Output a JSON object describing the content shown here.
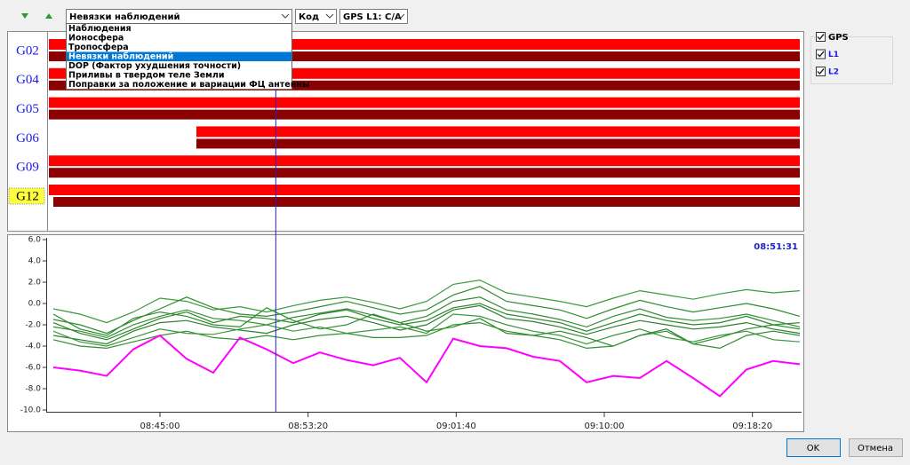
{
  "toolbar": {
    "options": [
      "Наблюдения",
      "Ионосфера",
      "Тропосфера",
      "Невязки наблюдений",
      "DOP (Фактор ухудшения точности)",
      "Приливы в твердом теле Земли",
      "Поправки за положение и вариации ФЦ антенны"
    ],
    "selected_index": 3,
    "code": "Код",
    "signal": "GPS L1: C/A"
  },
  "timeline": {
    "bar_colors": [
      "#ff0000",
      "#8b0000"
    ],
    "satellites": [
      {
        "name": "G02",
        "bars": [
          [
            "08:38:45",
            "09:21:00"
          ],
          [
            "08:38:45",
            "09:21:00"
          ]
        ]
      },
      {
        "name": "G04",
        "bars": [
          [
            "08:38:45",
            "09:21:00"
          ],
          [
            "08:38:45",
            "09:21:00"
          ]
        ]
      },
      {
        "name": "G05",
        "bars": [
          [
            "08:38:45",
            "09:21:00"
          ],
          [
            "08:38:45",
            "09:21:00"
          ]
        ]
      },
      {
        "name": "G06",
        "bars": [
          [
            "08:47:03",
            "09:21:00"
          ],
          [
            "08:47:03",
            "09:21:00"
          ]
        ]
      },
      {
        "name": "G09",
        "bars": [
          [
            "08:38:45",
            "09:21:00"
          ],
          [
            "08:38:45",
            "09:21:00"
          ]
        ]
      },
      {
        "name": "G12",
        "highlight": true,
        "bars": [
          [
            "08:38:45",
            "09:21:00"
          ],
          [
            "08:39:00",
            "09:21:00"
          ]
        ]
      }
    ]
  },
  "chart_data": {
    "type": "line",
    "cursor": "08:51:31",
    "cursor_color": "#2222cc",
    "xlim": [
      "08:38:45",
      "09:21:00"
    ],
    "xticks": [
      "08:45:00",
      "08:53:20",
      "09:01:40",
      "09:10:00",
      "09:18:20"
    ],
    "ylim": [
      -10,
      6
    ],
    "yticks": [
      {
        "value": 6,
        "label": "6.0"
      },
      {
        "value": 4,
        "label": "4.0"
      },
      {
        "value": 2,
        "label": "2.0"
      },
      {
        "value": 0,
        "label": "0.0"
      },
      {
        "value": -2,
        "label": "-2.0"
      },
      {
        "value": -4,
        "label": "-4.0"
      },
      {
        "value": -6,
        "label": "-6.0"
      },
      {
        "value": -8,
        "label": "-8.0"
      },
      {
        "value": -10,
        "label": "-10.0"
      }
    ],
    "x": [
      "08:39:00",
      "08:40:30",
      "08:42:00",
      "08:43:30",
      "08:45:00",
      "08:46:30",
      "08:48:00",
      "08:49:30",
      "08:51:00",
      "08:52:30",
      "08:54:00",
      "08:55:30",
      "08:57:00",
      "08:58:30",
      "09:00:00",
      "09:01:30",
      "09:03:00",
      "09:04:30",
      "09:06:00",
      "09:07:30",
      "09:09:00",
      "09:10:30",
      "09:12:00",
      "09:13:30",
      "09:15:00",
      "09:16:30",
      "09:18:00",
      "09:19:30",
      "09:21:00"
    ],
    "series": [
      {
        "color": "#3a9a3a",
        "values": [
          -0.5,
          -1.0,
          -1.8,
          -0.8,
          0.5,
          0.2,
          -0.6,
          -0.3,
          -0.8,
          -0.2,
          0.3,
          0.6,
          0.1,
          -0.5,
          0.2,
          1.8,
          2.2,
          1.0,
          0.6,
          0.2,
          -0.3,
          0.5,
          1.2,
          0.8,
          0.4,
          0.9,
          1.3,
          1.0,
          1.2
        ]
      },
      {
        "color": "#2e8b2e",
        "values": [
          -1.5,
          -2.0,
          -2.8,
          -1.6,
          -0.5,
          0.6,
          -0.4,
          -1.0,
          -1.2,
          -0.8,
          -0.3,
          0.2,
          -0.4,
          -1.0,
          -0.6,
          0.8,
          1.6,
          0.2,
          -0.2,
          -0.6,
          -1.4,
          -0.5,
          0.3,
          -0.3,
          -0.8,
          -0.4,
          0.0,
          -0.5,
          -1.2
        ]
      },
      {
        "color": "#338f33",
        "values": [
          -2.2,
          -2.6,
          -3.2,
          -2.0,
          -1.2,
          -0.6,
          -1.4,
          -1.6,
          -2.0,
          -1.3,
          -0.9,
          -0.5,
          -1.1,
          -1.8,
          -1.2,
          0.2,
          0.6,
          -0.6,
          -1.0,
          -1.5,
          -2.2,
          -1.2,
          -0.5,
          -1.3,
          -1.6,
          -1.4,
          -1.0,
          -1.6,
          -2.2
        ]
      },
      {
        "color": "#2a802a",
        "values": [
          -3.0,
          -3.4,
          -3.8,
          -2.6,
          -1.8,
          -1.6,
          -2.2,
          -2.5,
          -2.8,
          -2.0,
          -1.5,
          -1.2,
          -1.8,
          -2.5,
          -2.0,
          -0.6,
          -0.2,
          -1.4,
          -1.7,
          -2.2,
          -2.9,
          -2.2,
          -1.6,
          -2.0,
          -2.4,
          -2.2,
          -1.8,
          -2.4,
          -2.8
        ]
      },
      {
        "color": "#3c983c",
        "values": [
          -2.6,
          -3.6,
          -4.0,
          -3.2,
          -2.4,
          -2.8,
          -2.9,
          -2.4,
          -2.0,
          -2.6,
          -2.2,
          -2.8,
          -2.5,
          -2.2,
          -2.8,
          -1.0,
          -1.2,
          -2.0,
          -2.6,
          -3.0,
          -3.8,
          -3.0,
          -2.4,
          -3.2,
          -3.6,
          -3.0,
          -2.6,
          -3.4,
          -3.6
        ]
      },
      {
        "color": "#2e8b2e",
        "values": [
          -1.0,
          -2.4,
          -3.0,
          -1.4,
          -0.8,
          -1.2,
          -2.0,
          -2.2,
          -0.4,
          -1.6,
          -2.4,
          -2.0,
          -1.0,
          -1.8,
          -2.6,
          -2.2,
          -1.4,
          -2.8,
          -3.0,
          -2.6,
          -3.2,
          -4.0,
          -3.0,
          -2.4,
          -3.8,
          -4.2,
          -3.0,
          -2.6,
          -3.0
        ]
      },
      {
        "color": "#358d35",
        "values": [
          -3.4,
          -4.0,
          -4.2,
          -3.6,
          -3.0,
          -2.6,
          -3.2,
          -3.4,
          -3.0,
          -3.4,
          -3.0,
          -2.8,
          -3.2,
          -3.2,
          -3.0,
          -2.0,
          -1.8,
          -2.6,
          -3.0,
          -3.4,
          -4.2,
          -4.0,
          -3.0,
          -2.6,
          -3.8,
          -3.2,
          -2.4,
          -2.0,
          -1.8
        ]
      },
      {
        "color": "#2b852b",
        "values": [
          -1.8,
          -2.8,
          -3.4,
          -2.4,
          -1.4,
          -0.8,
          -1.8,
          -1.2,
          -1.4,
          -1.8,
          -1.0,
          -0.6,
          -1.4,
          -2.0,
          -1.6,
          -0.4,
          0.0,
          -1.0,
          -1.4,
          -1.8,
          -2.6,
          -1.8,
          -1.0,
          -1.6,
          -2.0,
          -1.8,
          -1.2,
          -2.0,
          -2.4
        ]
      },
      {
        "color": "#ff00ff",
        "values": [
          -6.0,
          -6.3,
          -6.8,
          -4.3,
          -3.0,
          -5.2,
          -6.5,
          -3.2,
          -4.3,
          -5.6,
          -4.6,
          -5.3,
          -5.8,
          -5.1,
          -7.4,
          -3.3,
          -4.0,
          -4.2,
          -5.0,
          -5.4,
          -7.4,
          -6.8,
          -7.0,
          -5.4,
          -7.0,
          -8.7,
          -6.2,
          -5.4,
          -5.7
        ]
      }
    ]
  },
  "filters": [
    {
      "label": "GPS",
      "checked": true,
      "level": 0
    },
    {
      "label": "L1",
      "checked": true,
      "level": 1
    },
    {
      "label": "L2",
      "checked": true,
      "level": 1
    }
  ],
  "buttons": [
    "OK",
    "Отмена"
  ]
}
